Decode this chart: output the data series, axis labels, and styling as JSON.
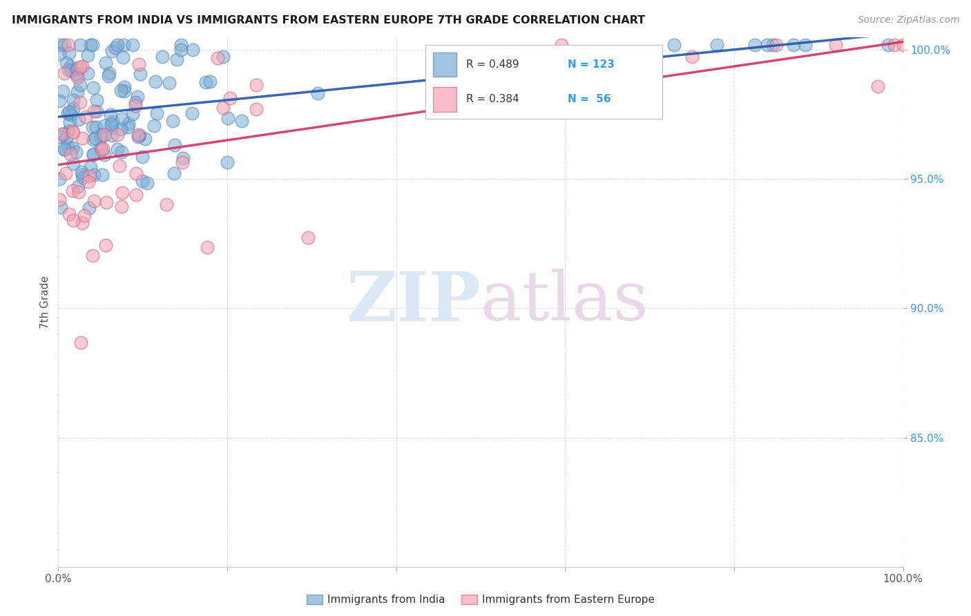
{
  "title": "IMMIGRANTS FROM INDIA VS IMMIGRANTS FROM EASTERN EUROPE 7TH GRADE CORRELATION CHART",
  "source": "Source: ZipAtlas.com",
  "ylabel": "7th Grade",
  "xlim": [
    0.0,
    1.0
  ],
  "ylim": [
    0.8,
    1.005
  ],
  "yticks": [
    0.85,
    0.9,
    0.95,
    1.0
  ],
  "ytick_labels": [
    "85.0%",
    "90.0%",
    "95.0%",
    "100.0%"
  ],
  "india_color": "#7aadd4",
  "india_edge": "#5588bb",
  "ee_color": "#f4a0b0",
  "ee_edge": "#cc6688",
  "india_trend_color": "#2255aa",
  "ee_trend_color": "#cc3366",
  "r_india": 0.489,
  "n_india": 123,
  "r_ee": 0.384,
  "n_ee": 56,
  "watermark_zip": "ZIP",
  "watermark_atlas": "atlas",
  "background_color": "#ffffff",
  "grid_color": "#dddddd",
  "legend_r_color": "#333333",
  "legend_n_color": "#3399ff",
  "ytick_color": "#3399ff",
  "source_color": "#999999"
}
